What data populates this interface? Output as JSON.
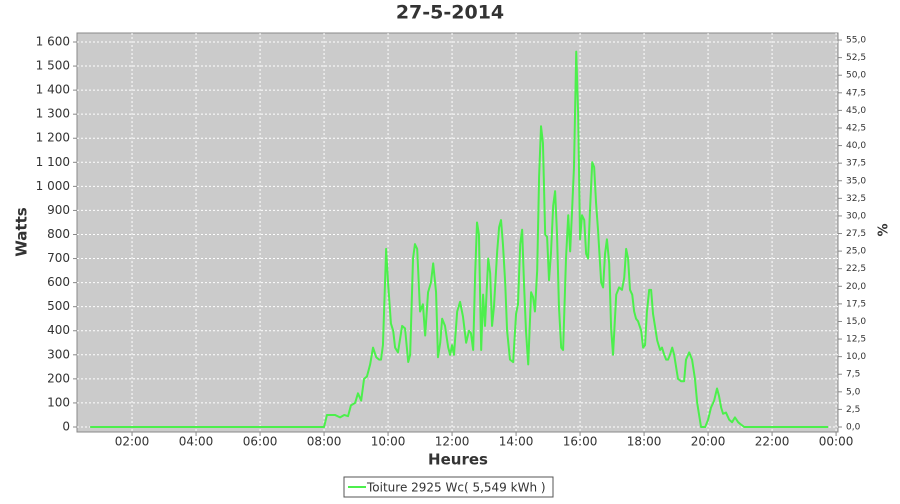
{
  "chart_data": {
    "type": "line",
    "title": "27-5-2014",
    "x_label": "Heures",
    "y_label": "Watts",
    "y2_label": "%",
    "grid": true,
    "legend": "bottom",
    "xlim": [
      0.28,
      24.06
    ],
    "xticks": [
      {
        "value": 2,
        "label": "02:00"
      },
      {
        "value": 4,
        "label": "04:00"
      },
      {
        "value": 6,
        "label": "06:00"
      },
      {
        "value": 8,
        "label": "08:00"
      },
      {
        "value": 10,
        "label": "10:00"
      },
      {
        "value": 12,
        "label": "12:00"
      },
      {
        "value": 14,
        "label": "14:00"
      },
      {
        "value": 16,
        "label": "16:00"
      },
      {
        "value": 18,
        "label": "18:00"
      },
      {
        "value": 20,
        "label": "20:00"
      },
      {
        "value": 22,
        "label": "22:00"
      },
      {
        "value": 24,
        "label": "00:00"
      }
    ],
    "ylim": [
      -20.8,
      1637.4
    ],
    "yticks": [
      0,
      100,
      200,
      300,
      400,
      500,
      600,
      700,
      800,
      900,
      {
        "value": 1000,
        "label": "1 000"
      },
      {
        "value": 1100,
        "label": "1 100"
      },
      {
        "value": 1200,
        "label": "1 200"
      },
      {
        "value": 1300,
        "label": "1 300"
      },
      {
        "value": 1400,
        "label": "1 400"
      },
      {
        "value": 1500,
        "label": "1 500"
      },
      {
        "value": 1600,
        "label": "1 600"
      }
    ],
    "y2lim": [
      -0.71,
      56.0
    ],
    "y2ticks": [
      {
        "value": 0,
        "label": "0,0"
      },
      {
        "value": 2.5,
        "label": "2,5"
      },
      {
        "value": 5,
        "label": "5,0"
      },
      {
        "value": 7.5,
        "label": "7,5"
      },
      {
        "value": 10,
        "label": "10,0"
      },
      {
        "value": 12.5,
        "label": "12,5"
      },
      {
        "value": 15,
        "label": "15,0"
      },
      {
        "value": 17.5,
        "label": "17,5"
      },
      {
        "value": 20,
        "label": "20,0"
      },
      {
        "value": 22.5,
        "label": "22,5"
      },
      {
        "value": 25,
        "label": "25,0"
      },
      {
        "value": 27.5,
        "label": "27,5"
      },
      {
        "value": 30,
        "label": "30,0"
      },
      {
        "value": 32.5,
        "label": "32,5"
      },
      {
        "value": 35,
        "label": "35,0"
      },
      {
        "value": 37.5,
        "label": "37,5"
      },
      {
        "value": 40,
        "label": "40,0"
      },
      {
        "value": 42.5,
        "label": "42,5"
      },
      {
        "value": 45,
        "label": "45,0"
      },
      {
        "value": 47.5,
        "label": "47,5"
      },
      {
        "value": 50,
        "label": "50,0"
      },
      {
        "value": 52.5,
        "label": "52,5"
      },
      {
        "value": 55,
        "label": "55,0"
      }
    ],
    "x": [
      0.69,
      8.0,
      8.09,
      8.34,
      8.5,
      8.63,
      8.75,
      8.84,
      8.97,
      9.06,
      9.16,
      9.25,
      9.34,
      9.44,
      9.53,
      9.63,
      9.72,
      9.78,
      9.84,
      9.94,
      10.0,
      10.09,
      10.16,
      10.22,
      10.31,
      10.38,
      10.44,
      10.53,
      10.63,
      10.69,
      10.78,
      10.84,
      10.91,
      11.0,
      11.09,
      11.16,
      11.25,
      11.34,
      11.41,
      11.5,
      11.56,
      11.63,
      11.69,
      11.78,
      11.88,
      11.94,
      12.0,
      12.06,
      12.16,
      12.25,
      12.34,
      12.44,
      12.53,
      12.59,
      12.66,
      12.72,
      12.78,
      12.84,
      12.91,
      12.97,
      13.03,
      13.13,
      13.19,
      13.25,
      13.31,
      13.41,
      13.47,
      13.53,
      13.59,
      13.66,
      13.72,
      13.81,
      13.91,
      14.0,
      14.06,
      14.13,
      14.19,
      14.25,
      14.31,
      14.38,
      14.47,
      14.53,
      14.59,
      14.66,
      14.72,
      14.78,
      14.84,
      14.91,
      14.97,
      15.03,
      15.09,
      15.16,
      15.22,
      15.28,
      15.34,
      15.41,
      15.47,
      15.56,
      15.63,
      15.69,
      15.75,
      15.81,
      15.88,
      15.94,
      16.0,
      16.06,
      16.13,
      16.19,
      16.25,
      16.31,
      16.38,
      16.44,
      16.5,
      16.56,
      16.66,
      16.72,
      16.78,
      16.84,
      16.91,
      16.97,
      17.03,
      17.13,
      17.22,
      17.31,
      17.38,
      17.44,
      17.5,
      17.56,
      17.63,
      17.69,
      17.75,
      17.81,
      17.91,
      17.97,
      18.03,
      18.09,
      18.16,
      18.22,
      18.28,
      18.34,
      18.41,
      18.5,
      18.56,
      18.63,
      18.69,
      18.75,
      18.81,
      18.88,
      18.94,
      19.0,
      19.06,
      19.16,
      19.25,
      19.31,
      19.41,
      19.5,
      19.59,
      19.66,
      19.72,
      19.78,
      19.91,
      20.0,
      20.09,
      20.19,
      20.28,
      20.34,
      20.41,
      20.47,
      20.56,
      20.66,
      20.75,
      20.84,
      20.94,
      21.03,
      21.13,
      23.75
    ],
    "series": [
      {
        "name": "Toiture 2925 Wc( 5,549 kWh )",
        "color": "#4cef4c",
        "values": [
          0,
          0,
          50,
          50,
          40,
          50,
          45,
          90,
          100,
          140,
          110,
          200,
          210,
          260,
          330,
          290,
          280,
          280,
          340,
          740,
          600,
          430,
          400,
          330,
          310,
          370,
          420,
          410,
          270,
          300,
          700,
          760,
          740,
          480,
          510,
          380,
          560,
          600,
          680,
          560,
          290,
          350,
          450,
          420,
          330,
          300,
          340,
          300,
          480,
          520,
          460,
          350,
          400,
          390,
          320,
          630,
          850,
          800,
          320,
          550,
          420,
          700,
          640,
          420,
          500,
          730,
          830,
          860,
          760,
          600,
          400,
          280,
          270,
          470,
          510,
          760,
          820,
          590,
          400,
          260,
          560,
          540,
          480,
          650,
          1040,
          1250,
          1180,
          800,
          790,
          610,
          720,
          920,
          980,
          800,
          500,
          330,
          320,
          700,
          880,
          730,
          900,
          1080,
          1560,
          1300,
          780,
          880,
          860,
          720,
          700,
          900,
          1100,
          1080,
          930,
          820,
          600,
          580,
          720,
          780,
          680,
          410,
          300,
          550,
          580,
          570,
          620,
          740,
          700,
          570,
          550,
          480,
          450,
          440,
          400,
          330,
          340,
          480,
          570,
          570,
          470,
          420,
          360,
          320,
          330,
          300,
          280,
          280,
          300,
          330,
          300,
          250,
          200,
          190,
          190,
          280,
          310,
          280,
          200,
          100,
          50,
          0,
          0,
          30,
          80,
          110,
          160,
          130,
          80,
          55,
          60,
          30,
          20,
          40,
          20,
          10,
          0,
          0
        ]
      }
    ]
  }
}
